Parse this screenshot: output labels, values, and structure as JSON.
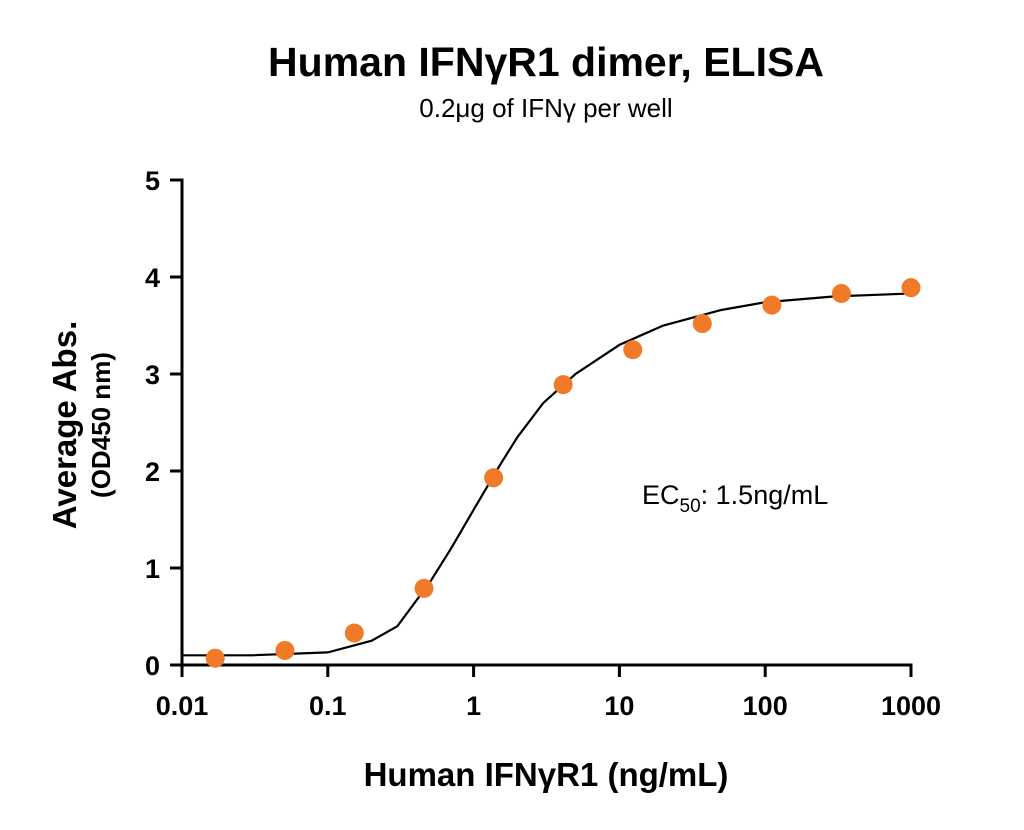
{
  "chart_data": {
    "type": "scatter",
    "title": "Human IFNγR1 dimer, ELISA",
    "subtitle": "0.2μg of IFNγ per well",
    "xlabel": "Human IFNγR1 (ng/mL)",
    "ylabel": [
      "Average Abs.",
      "(OD450 nm)"
    ],
    "xscale": "log",
    "xlim": [
      0.01,
      1000
    ],
    "xticks": [
      0.01,
      0.1,
      1,
      10,
      100,
      1000
    ],
    "ylim": [
      0,
      5
    ],
    "yticks": [
      0,
      1,
      2,
      3,
      4,
      5
    ],
    "annotation": {
      "text": "EC",
      "sub": "50",
      "rest": ": 1.5ng/mL"
    },
    "series": [
      {
        "kind": "points",
        "color": "#f07a28",
        "x": [
          0.0169,
          0.0508,
          0.152,
          0.457,
          1.372,
          4.115,
          12.35,
          37.04,
          111.1,
          333.3,
          1000
        ],
        "values": [
          0.07,
          0.15,
          0.33,
          0.79,
          1.93,
          2.89,
          3.25,
          3.52,
          3.71,
          3.83,
          3.89
        ]
      },
      {
        "kind": "curve",
        "color": "#000000",
        "x": [
          0.01,
          0.03,
          0.1,
          0.2,
          0.3,
          0.5,
          0.7,
          1,
          1.5,
          2,
          3,
          5,
          10,
          20,
          50,
          100,
          300,
          1000
        ],
        "values": [
          0.1,
          0.1,
          0.13,
          0.25,
          0.4,
          0.85,
          1.2,
          1.6,
          2.05,
          2.35,
          2.7,
          3.0,
          3.3,
          3.5,
          3.66,
          3.74,
          3.8,
          3.83
        ]
      }
    ]
  }
}
